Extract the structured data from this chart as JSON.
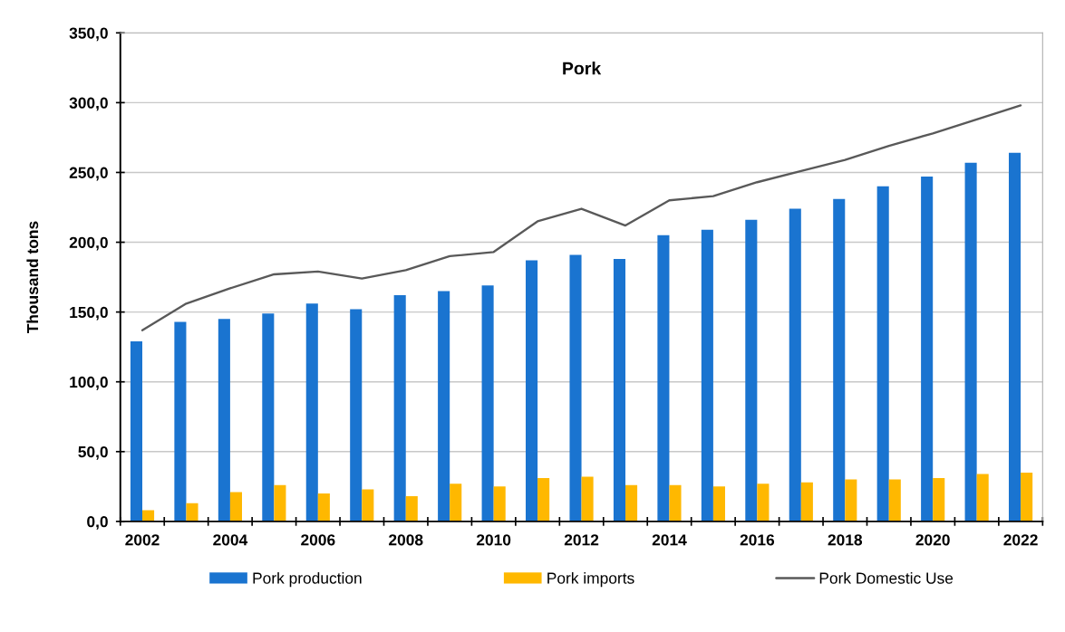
{
  "chart_data": {
    "type": "bar",
    "title": "Pork",
    "ylabel": "Thousand tons",
    "categories": [
      "2002",
      null,
      "2004",
      null,
      "2006",
      null,
      "2008",
      null,
      "2010",
      null,
      "2012",
      null,
      "2014",
      null,
      "2016",
      null,
      "2018",
      null,
      "2020",
      null,
      "2022"
    ],
    "series": [
      {
        "name": "Pork production",
        "color": "#1a74d0",
        "values": [
          129,
          143,
          145,
          149,
          156,
          152,
          162,
          165,
          169,
          187,
          191,
          188,
          205,
          209,
          216,
          224,
          231,
          240,
          247,
          257,
          264
        ]
      },
      {
        "name": "Pork imports",
        "color": "#ffb800",
        "values": [
          8,
          13,
          21,
          26,
          20,
          23,
          18,
          27,
          25,
          31,
          32,
          26,
          26,
          25,
          27,
          28,
          30,
          30,
          31,
          34,
          35
        ]
      },
      {
        "name": "Pork Domestic Use",
        "type": "line",
        "color": "#595959",
        "values": [
          137,
          156,
          167,
          177,
          179,
          174,
          180,
          190,
          193,
          215,
          224,
          212,
          230,
          233,
          243,
          251,
          259,
          269,
          278,
          288,
          298
        ]
      }
    ],
    "ylim": [
      0,
      350
    ],
    "yticks": [
      {
        "value": 0,
        "label": "0,0"
      },
      {
        "value": 50,
        "label": "50,0"
      },
      {
        "value": 100,
        "label": "100,0"
      },
      {
        "value": 150,
        "label": "150,0"
      },
      {
        "value": 200,
        "label": "200,0"
      },
      {
        "value": 250,
        "label": "250,0"
      },
      {
        "value": 300,
        "label": "300,0"
      },
      {
        "value": 350,
        "label": "350,0"
      }
    ],
    "grid": "y",
    "legend": "bottom",
    "marker": "none",
    "line_style": "solid"
  }
}
